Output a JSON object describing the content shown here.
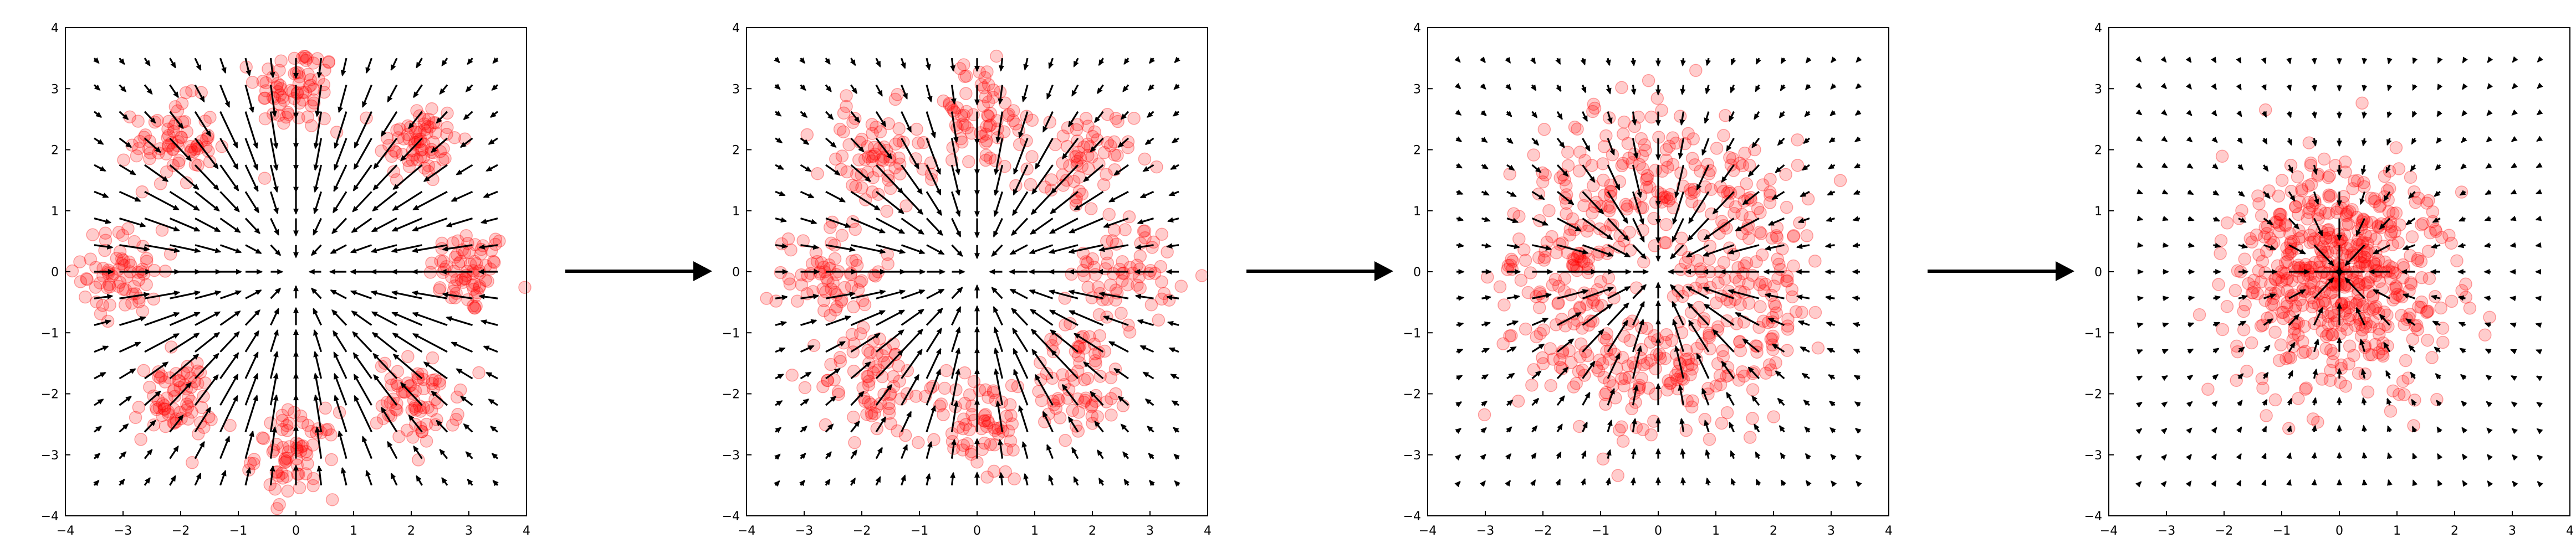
{
  "figure": {
    "panel_count": 4,
    "connector_arrows": 3
  },
  "style": {
    "point_color": "#ff0000",
    "point_opacity": 0.2,
    "arrow_color": "#000000",
    "axes_color": "#000000",
    "background": "#ffffff"
  },
  "chart_data": [
    {
      "type": "scatter",
      "title": "",
      "xlabel": "",
      "ylabel": "",
      "xlim": [
        -4,
        4
      ],
      "ylim": [
        -4,
        4
      ],
      "xticks": [
        "−4",
        "−3",
        "−2",
        "−1",
        "0",
        "1",
        "2",
        "3",
        "4"
      ],
      "yticks": [
        "−4",
        "−3",
        "−2",
        "−1",
        "0",
        "1",
        "2",
        "3",
        "4"
      ],
      "grid": false,
      "overlay": "quiver vector field pointing toward the origin",
      "clusters": {
        "count": 8,
        "radius": 3.0,
        "spread": 0.35,
        "points_per_cluster": 70
      }
    },
    {
      "type": "scatter",
      "title": "",
      "xlabel": "",
      "ylabel": "",
      "xlim": [
        -4,
        4
      ],
      "ylim": [
        -4,
        4
      ],
      "xticks": [
        "−4",
        "−3",
        "−2",
        "−1",
        "0",
        "1",
        "2",
        "3",
        "4"
      ],
      "yticks": [
        "−4",
        "−3",
        "−2",
        "−1",
        "0",
        "1",
        "2",
        "3",
        "4"
      ],
      "grid": false,
      "overlay": "quiver vector field pointing toward the origin",
      "clusters": {
        "count": 8,
        "radius": 2.55,
        "spread": 0.45,
        "points_per_cluster": 70
      }
    },
    {
      "type": "scatter",
      "title": "",
      "xlabel": "",
      "ylabel": "",
      "xlim": [
        -4,
        4
      ],
      "ylim": [
        -4,
        4
      ],
      "xticks": [
        "−4",
        "−3",
        "−2",
        "−1",
        "0",
        "1",
        "2",
        "3",
        "4"
      ],
      "yticks": [
        "−4",
        "−3",
        "−2",
        "−1",
        "0",
        "1",
        "2",
        "3",
        "4"
      ],
      "grid": false,
      "overlay": "quiver vector field pointing toward the origin",
      "clusters": {
        "count": 8,
        "radius": 1.75,
        "spread": 0.6,
        "points_per_cluster": 70
      }
    },
    {
      "type": "scatter",
      "title": "",
      "xlabel": "",
      "ylabel": "",
      "xlim": [
        -4,
        4
      ],
      "ylim": [
        -4,
        4
      ],
      "xticks": [
        "−4",
        "−3",
        "−2",
        "−1",
        "0",
        "1",
        "2",
        "3",
        "4"
      ],
      "yticks": [
        "−4",
        "−3",
        "−2",
        "−1",
        "0",
        "1",
        "2",
        "3",
        "4"
      ],
      "grid": false,
      "overlay": "quiver vector field pointing toward the origin",
      "clusters": {
        "count": 8,
        "radius": 0.45,
        "spread": 0.85,
        "points_per_cluster": 70
      }
    }
  ]
}
